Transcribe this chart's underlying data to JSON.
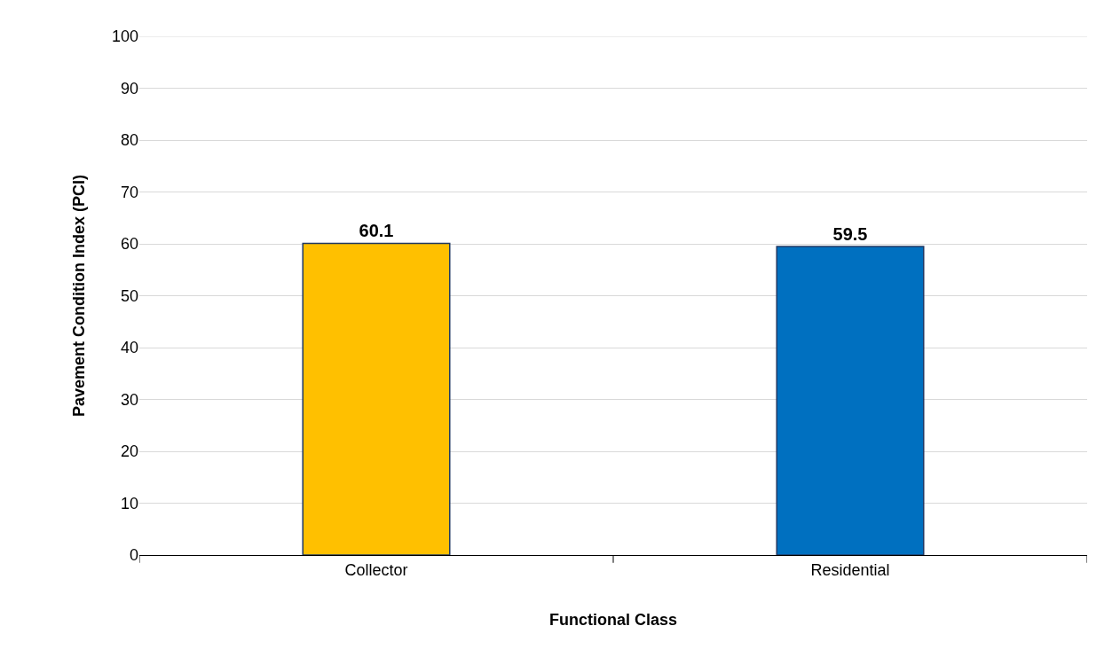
{
  "chart_data": {
    "type": "bar",
    "xlabel": "Functional Class",
    "ylabel": "Pavement Condition Index (PCI)",
    "categories": [
      "Collector",
      "Residential"
    ],
    "values": [
      60.1,
      59.5
    ],
    "colors": [
      "#ffc000",
      "#0070c0"
    ],
    "ylim": [
      0,
      100
    ],
    "yticks": [
      0,
      10,
      20,
      30,
      40,
      50,
      60,
      70,
      80,
      90,
      100
    ],
    "grid": "y",
    "data_labels": true
  }
}
